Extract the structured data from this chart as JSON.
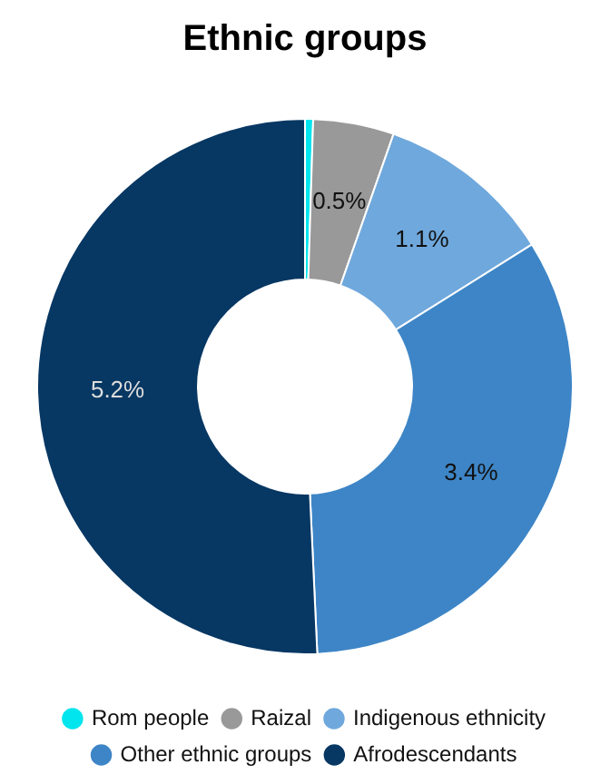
{
  "chart_data": {
    "type": "donut",
    "title": "Ethnic groups",
    "categories": [
      "Rom people",
      "Raizal",
      "Indigenous ethnicity",
      "Other ethnic groups",
      "Afrodescendants"
    ],
    "values": [
      0.05,
      0.5,
      1.1,
      3.4,
      5.2
    ],
    "colors": [
      "#00e5ee",
      "#999999",
      "#6fa8dc",
      "#3d85c6",
      "#073763"
    ],
    "value_labels": [
      null,
      "0.5%",
      "1.1%",
      "3.4%",
      "5.2%"
    ],
    "legend": "bottom"
  }
}
